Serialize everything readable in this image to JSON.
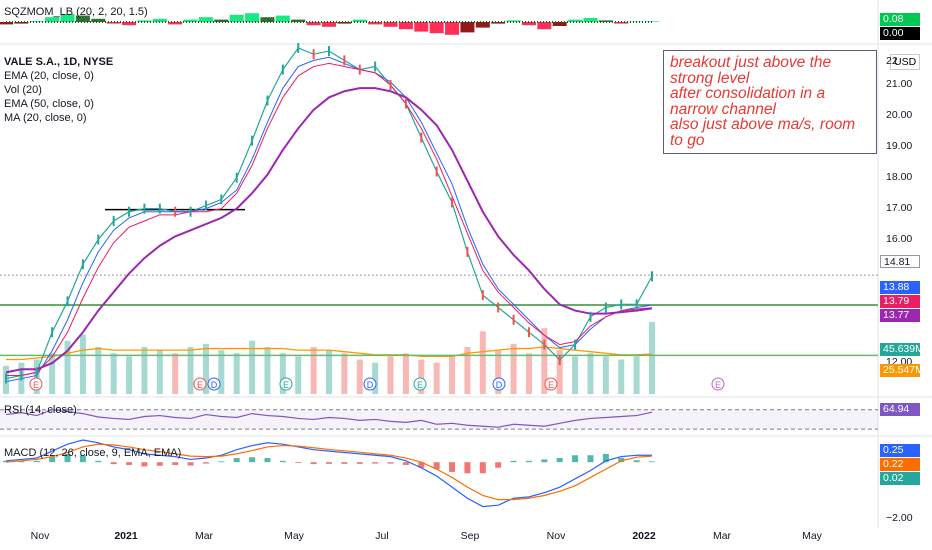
{
  "indicators": {
    "sqzmom": "SQZMOM_LB (20, 2, 20, 1.5)",
    "rsi": "RSI (14, close)",
    "macd": "MACD (12, 26, close, 9, EMA, EMA)"
  },
  "legend": [
    "VALE S.A., 1D, NYSE",
    "EMA (20, close, 0)",
    "Vol (20)",
    "EMA (50, close, 0)",
    "MA (20, close, 0)"
  ],
  "annotation": [
    "breakout just above the",
    "strong level",
    "after consolidation in a",
    "narrow channel",
    "also just above ma/s, room",
    "to go"
  ],
  "price_axis": {
    "currency": "USD",
    "ticks": [
      "21.00",
      "20.00",
      "19.00",
      "18.00",
      "17.00",
      "16.00",
      "12.00"
    ],
    "tick_values": [
      21,
      20,
      19,
      18,
      17,
      16,
      12
    ],
    "partial_ticks": [
      "22"
    ],
    "range": [
      11.0,
      22.2
    ]
  },
  "macd_axis": {
    "ticks": [
      "−2.00"
    ],
    "range": [
      -2.3,
      0.8
    ]
  },
  "value_tags": [
    {
      "text": "0.08",
      "color": "#00c853",
      "pane": "sqz",
      "value": 0.08
    },
    {
      "text": "0.00",
      "color": "#000000",
      "pane": "sqz",
      "value": 0.0
    },
    {
      "text": "14.81",
      "color": "#ffffff",
      "pane": "price",
      "value": 14.81
    },
    {
      "text": "13.88",
      "color": "#2962ff",
      "pane": "price",
      "value": 13.88
    },
    {
      "text": "13.79",
      "color": "#e91e63",
      "pane": "price",
      "value": 13.79
    },
    {
      "text": "13.77",
      "color": "#9c27b0",
      "pane": "price",
      "value": 13.77
    },
    {
      "text": "45.639M",
      "color": "#26a69a",
      "pane": "vol",
      "value": 45.639
    },
    {
      "text": "25.547M",
      "color": "#ff9800",
      "pane": "vol",
      "value": 25.547
    },
    {
      "text": "64.94",
      "color": "#7e57c2",
      "pane": "rsi",
      "value": 64.94
    },
    {
      "text": "0.25",
      "color": "#2962ff",
      "pane": "macd",
      "value": 0.25
    },
    {
      "text": "0.22",
      "color": "#ff6d00",
      "pane": "macd",
      "value": 0.22
    },
    {
      "text": "0.02",
      "color": "#26a69a",
      "pane": "macd",
      "value": 0.02
    }
  ],
  "time_axis": {
    "labels": [
      "Nov",
      "2021",
      "Mar",
      "May",
      "Jul",
      "Sep",
      "Nov",
      "2022",
      "Mar",
      "May"
    ]
  },
  "events": [
    {
      "letter": "E",
      "color": "#ef5350"
    },
    {
      "letter": "E",
      "color": "#ef5350"
    },
    {
      "letter": "D",
      "color": "#2962ff"
    },
    {
      "letter": "E",
      "color": "#26a69a"
    },
    {
      "letter": "D",
      "color": "#2962ff"
    },
    {
      "letter": "E",
      "color": "#26a69a"
    },
    {
      "letter": "D",
      "color": "#2962ff"
    },
    {
      "letter": "E",
      "color": "#ef5350"
    },
    {
      "letter": "E",
      "color": "#ba68c8"
    }
  ],
  "levels": [
    {
      "value": 14.85,
      "color": "#9598a1",
      "style": "dotted"
    },
    {
      "value": 13.88,
      "color": "#388e3c",
      "style": "solid"
    },
    {
      "value": 12.25,
      "color": "#66bb6a",
      "style": "solid"
    },
    {
      "value": 16.97,
      "color": "#000000",
      "style": "solid",
      "from": "2020-11-25",
      "to": "2021-04-20"
    }
  ],
  "chart_data": {
    "type": "line",
    "series": [
      {
        "values": [
          11.5,
          11.6,
          11.7,
          13.0,
          14.0,
          15.2,
          16.0,
          16.6,
          16.9,
          17.0,
          17.0,
          16.9,
          16.9,
          17.1,
          17.3,
          18.0,
          19.2,
          20.5,
          21.5,
          22.2,
          22.0,
          22.1,
          21.8,
          21.5,
          21.6,
          21.0,
          20.4,
          19.3,
          18.2,
          17.2,
          15.6,
          14.2,
          13.8,
          13.4,
          13.0,
          12.6,
          12.1,
          12.6,
          13.5,
          13.8,
          13.9,
          13.9,
          14.81
        ]
      },
      {
        "values": [
          11.4,
          11.5,
          11.6,
          12.4,
          13.4,
          14.6,
          15.6,
          16.3,
          16.7,
          16.9,
          16.9,
          16.9,
          16.9,
          17.0,
          17.2,
          17.6,
          18.6,
          19.8,
          20.9,
          21.6,
          21.8,
          21.9,
          21.7,
          21.5,
          21.4,
          21.1,
          20.6,
          19.8,
          18.8,
          17.8,
          16.4,
          15.2,
          14.4,
          13.9,
          13.4,
          12.9,
          12.5,
          12.6,
          13.1,
          13.5,
          13.7,
          13.8,
          13.88
        ]
      },
      {
        "values": [
          11.6,
          11.6,
          11.7,
          12.2,
          13.0,
          14.1,
          15.1,
          15.9,
          16.4,
          16.6,
          16.8,
          16.8,
          16.9,
          16.9,
          17.0,
          17.5,
          18.4,
          19.6,
          20.6,
          21.3,
          21.6,
          21.7,
          21.6,
          21.5,
          21.4,
          21.0,
          20.4,
          19.6,
          18.6,
          17.4,
          16.2,
          15.0,
          14.3,
          13.8,
          13.3,
          12.9,
          12.6,
          12.7,
          13.2,
          13.5,
          13.7,
          13.75,
          13.79
        ]
      },
      {
        "values": [
          11.7,
          11.8,
          11.8,
          12.0,
          12.4,
          13.0,
          13.7,
          14.3,
          14.9,
          15.4,
          15.8,
          16.1,
          16.3,
          16.5,
          16.7,
          17.0,
          17.5,
          18.1,
          18.9,
          19.6,
          20.2,
          20.6,
          20.8,
          20.9,
          20.9,
          20.8,
          20.6,
          20.2,
          19.7,
          18.9,
          17.9,
          16.9,
          16.1,
          15.5,
          15.0,
          14.4,
          13.9,
          13.7,
          13.6,
          13.6,
          13.65,
          13.7,
          13.77
        ]
      }
    ],
    "volume": [
      18,
      20,
      22,
      26,
      34,
      38,
      30,
      26,
      24,
      30,
      28,
      26,
      30,
      32,
      28,
      26,
      34,
      30,
      26,
      24,
      30,
      28,
      26,
      22,
      20,
      24,
      26,
      22,
      20,
      24,
      30,
      40,
      28,
      32,
      26,
      42,
      28,
      24,
      26,
      24,
      22,
      24,
      46
    ],
    "volume_ma": [
      22,
      22,
      23,
      24,
      26,
      28,
      29,
      28,
      28,
      28,
      28,
      28,
      28,
      29,
      29,
      29,
      29,
      29,
      29,
      28,
      28,
      28,
      27,
      26,
      25,
      25,
      25,
      24,
      24,
      24,
      26,
      27,
      28,
      29,
      29,
      30,
      29,
      28,
      27,
      26,
      25,
      25,
      25.5
    ],
    "rsi": [
      60,
      64,
      58,
      70,
      66,
      62,
      55,
      52,
      50,
      56,
      58,
      54,
      52,
      60,
      56,
      54,
      62,
      58,
      56,
      52,
      50,
      54,
      52,
      48,
      50,
      46,
      44,
      48,
      40,
      42,
      38,
      36,
      34,
      40,
      38,
      36,
      42,
      48,
      52,
      54,
      56,
      58,
      64.94
    ],
    "rsi_range": [
      0,
      100
    ],
    "macd": [
      0.05,
      0.1,
      0.15,
      0.4,
      0.65,
      0.8,
      0.7,
      0.55,
      0.45,
      0.3,
      0.25,
      0.2,
      0.1,
      0.15,
      0.25,
      0.45,
      0.6,
      0.7,
      0.65,
      0.55,
      0.45,
      0.4,
      0.35,
      0.3,
      0.25,
      0.2,
      0.05,
      -0.2,
      -0.5,
      -0.9,
      -1.3,
      -1.6,
      -1.55,
      -1.3,
      -1.25,
      -1.1,
      -0.9,
      -0.6,
      -0.3,
      0.05,
      0.2,
      0.25,
      0.25
    ],
    "signal": [
      0.0,
      0.05,
      0.1,
      0.2,
      0.35,
      0.55,
      0.65,
      0.62,
      0.55,
      0.45,
      0.38,
      0.3,
      0.22,
      0.2,
      0.22,
      0.3,
      0.42,
      0.55,
      0.6,
      0.58,
      0.52,
      0.46,
      0.41,
      0.36,
      0.3,
      0.25,
      0.15,
      0.0,
      -0.25,
      -0.55,
      -0.9,
      -1.2,
      -1.35,
      -1.35,
      -1.3,
      -1.2,
      -1.05,
      -0.85,
      -0.55,
      -0.25,
      0.05,
      0.18,
      0.22
    ],
    "sqz": [
      -0.3,
      -0.2,
      0.1,
      0.6,
      1.0,
      0.8,
      0.4,
      -0.2,
      -0.4,
      0.2,
      0.4,
      -0.3,
      0.3,
      0.6,
      0.3,
      0.9,
      1.1,
      0.6,
      0.8,
      0.3,
      -0.4,
      -0.6,
      -0.2,
      0.3,
      -0.3,
      -0.6,
      -0.9,
      -1.2,
      -1.4,
      -1.6,
      -1.3,
      -0.7,
      -0.2,
      0.2,
      -0.4,
      -0.9,
      -0.5,
      0.3,
      0.5,
      0.2,
      -0.2,
      0.05,
      0.08
    ]
  }
}
